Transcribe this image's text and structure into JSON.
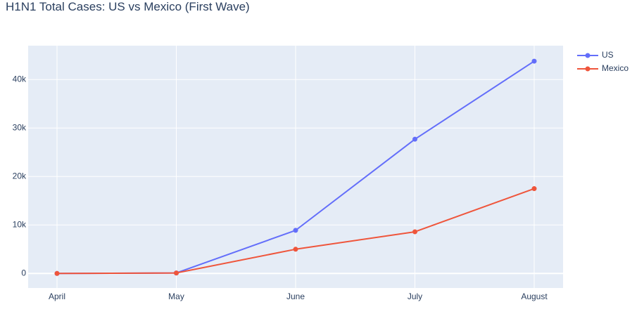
{
  "chart_data": {
    "type": "line",
    "title": "H1N1 Total Cases: US vs Mexico (First Wave)",
    "xlabel": "",
    "ylabel": "",
    "categories": [
      "April",
      "May",
      "June",
      "July",
      "August"
    ],
    "ylim": [
      -3000,
      47000
    ],
    "y_ticks": [
      0,
      10000,
      20000,
      30000,
      40000
    ],
    "y_tick_labels": [
      "0",
      "10k",
      "20k",
      "30k",
      "40k"
    ],
    "grid": true,
    "legend_position": "top-right",
    "series": [
      {
        "name": "US",
        "color": "#636efa",
        "values": [
          0,
          100,
          8900,
          27700,
          43800
        ]
      },
      {
        "name": "Mexico",
        "color": "#ef553b",
        "values": [
          0,
          100,
          5000,
          8600,
          17500
        ]
      }
    ]
  }
}
